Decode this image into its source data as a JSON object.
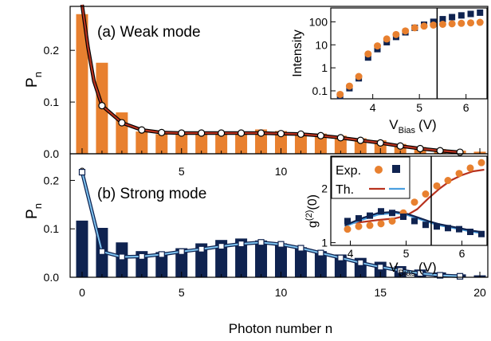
{
  "colors": {
    "orange": "#e8802f",
    "navy": "#0f2350",
    "dark_red": "#b8321e",
    "light_blue": "#4a9fe0",
    "black": "#000000"
  },
  "chart_data": [
    {
      "id": "weak",
      "type": "bar",
      "panel_label": "(a) Weak mode",
      "ylabel": "P",
      "ylabel_sub": "n",
      "xlim": [
        -0.6,
        20.4
      ],
      "ylim": [
        0,
        0.285
      ],
      "yticks": [
        0.0,
        0.1,
        0.2
      ],
      "ytick_labels": [
        "0.0",
        "0.1",
        "0.2"
      ],
      "x": [
        0,
        1,
        2,
        3,
        4,
        5,
        6,
        7,
        8,
        9,
        10,
        11,
        12,
        13,
        14,
        15,
        16,
        17,
        18,
        19,
        20
      ],
      "values": [
        0.27,
        0.176,
        0.08,
        0.043,
        0.038,
        0.038,
        0.04,
        0.04,
        0.043,
        0.047,
        0.044,
        0.04,
        0.039,
        0.035,
        0.03,
        0.026,
        0.019,
        0.013,
        0.009,
        0.006,
        0.004
      ],
      "theory": [
        0.33,
        0.093,
        0.06,
        0.046,
        0.041,
        0.04,
        0.04,
        0.04,
        0.04,
        0.04,
        0.039,
        0.038,
        0.035,
        0.031,
        0.026,
        0.021,
        0.015,
        0.01,
        0.006,
        0.003,
        0.001
      ],
      "theory_line_pre": [
        [
          0.0,
          0.3
        ],
        [
          0.3,
          0.205
        ],
        [
          0.6,
          0.14
        ]
      ]
    },
    {
      "id": "strong",
      "type": "bar",
      "panel_label": "(b) Strong mode",
      "ylabel": "P",
      "ylabel_sub": "n",
      "xlabel": "Photon number n",
      "xlim": [
        -0.6,
        20.4
      ],
      "ylim": [
        0,
        0.255
      ],
      "yticks": [
        0.0,
        0.1,
        0.2
      ],
      "ytick_labels": [
        "0.0",
        "0.1",
        "0.2"
      ],
      "xticks": [
        0,
        5,
        10,
        15,
        20
      ],
      "xtick_labels": [
        "0",
        "5",
        "10",
        "15",
        "20"
      ],
      "x": [
        0,
        1,
        2,
        3,
        4,
        5,
        6,
        7,
        8,
        9,
        10,
        11,
        12,
        13,
        14,
        15,
        16,
        17,
        18,
        19,
        20
      ],
      "values": [
        0.117,
        0.102,
        0.072,
        0.054,
        0.052,
        0.06,
        0.07,
        0.077,
        0.08,
        0.076,
        0.07,
        0.062,
        0.054,
        0.047,
        0.04,
        0.032,
        0.023,
        0.016,
        0.01,
        0.006,
        0.004
      ],
      "theory": [
        0.217,
        0.053,
        0.042,
        0.043,
        0.047,
        0.053,
        0.058,
        0.064,
        0.069,
        0.072,
        0.068,
        0.06,
        0.05,
        0.04,
        0.03,
        0.021,
        0.014,
        0.008,
        0.004,
        0.002,
        0.001
      ]
    },
    {
      "id": "inset-intensity",
      "type": "scatter",
      "xlabel": "V",
      "xlabel_sub": "Bias",
      "xlabel_unit": "(V)",
      "ylabel": "Intensity",
      "yscale": "log",
      "xlim": [
        3.1,
        6.45
      ],
      "ylim": [
        0.045,
        400
      ],
      "xticks": [
        4,
        5,
        6
      ],
      "xtick_labels": [
        "4",
        "5",
        "6"
      ],
      "yticks": [
        0.1,
        1,
        10,
        100
      ],
      "ytick_labels": [
        "0.1",
        "1",
        "10",
        "100"
      ],
      "vline": 5.38,
      "series": [
        {
          "marker": "square",
          "color": "#0f2350",
          "x": [
            3.3,
            3.5,
            3.7,
            3.9,
            4.1,
            4.3,
            4.5,
            4.7,
            4.9,
            5.1,
            5.3,
            5.5,
            5.7,
            5.9,
            6.1,
            6.3
          ],
          "y": [
            0.06,
            0.13,
            0.35,
            2.8,
            6.5,
            13,
            22,
            35,
            55,
            75,
            100,
            130,
            160,
            190,
            220,
            250
          ]
        },
        {
          "marker": "circle",
          "color": "#e8802f",
          "x": [
            3.3,
            3.5,
            3.7,
            3.9,
            4.1,
            4.3,
            4.5,
            4.7,
            4.9,
            5.1,
            5.3,
            5.5,
            5.7,
            5.9,
            6.1,
            6.3
          ],
          "y": [
            0.07,
            0.16,
            0.42,
            4,
            9,
            18,
            28,
            40,
            55,
            65,
            72,
            78,
            82,
            86,
            90,
            95
          ]
        }
      ]
    },
    {
      "id": "inset-g2",
      "type": "scatter",
      "xlabel": "V",
      "xlabel_sub": "Bias",
      "xlabel_unit": "(V)",
      "ylabel": "g",
      "ylabel_sup": "(2)",
      "ylabel_tail": "(0)",
      "xlim": [
        3.65,
        6.45
      ],
      "ylim": [
        0.95,
        2.6
      ],
      "xticks": [
        4,
        5,
        6
      ],
      "xtick_labels": [
        "4",
        "5",
        "6"
      ],
      "yticks": [
        1,
        2
      ],
      "ytick_labels": [
        "1",
        "2"
      ],
      "vline": 5.45,
      "legend": {
        "exp_label": "Exp.",
        "th_label": "Th."
      },
      "series": [
        {
          "marker": "circle",
          "color": "#e8802f",
          "x": [
            3.95,
            4.15,
            4.35,
            4.55,
            4.75,
            4.95,
            5.15,
            5.35,
            5.55,
            5.75,
            5.95,
            6.15,
            6.35
          ],
          "y": [
            1.25,
            1.3,
            1.32,
            1.35,
            1.4,
            1.55,
            1.75,
            1.9,
            2.05,
            2.15,
            2.28,
            2.38,
            2.48
          ]
        },
        {
          "marker": "square",
          "color": "#0f2350",
          "x": [
            3.95,
            4.15,
            4.35,
            4.55,
            4.75,
            4.95,
            5.15,
            5.35,
            5.55,
            5.75,
            5.95,
            6.15,
            6.35
          ],
          "y": [
            1.4,
            1.45,
            1.5,
            1.58,
            1.55,
            1.48,
            1.4,
            1.33,
            1.3,
            1.27,
            1.25,
            1.2,
            1.16
          ]
        },
        {
          "marker": "line",
          "color": "#b8321e",
          "x": [
            3.9,
            4.2,
            4.5,
            4.8,
            5.0,
            5.2,
            5.4,
            5.6,
            5.8,
            6.0,
            6.2,
            6.4
          ],
          "y": [
            1.35,
            1.38,
            1.42,
            1.45,
            1.5,
            1.62,
            1.82,
            2.0,
            2.15,
            2.25,
            2.32,
            2.35
          ]
        },
        {
          "marker": "line",
          "color": "#4a9fe0",
          "x": [
            3.9,
            4.2,
            4.5,
            4.8,
            5.0,
            5.2,
            5.4,
            5.6,
            5.8,
            6.0,
            6.2,
            6.4
          ],
          "y": [
            1.3,
            1.42,
            1.52,
            1.55,
            1.52,
            1.45,
            1.38,
            1.32,
            1.28,
            1.24,
            1.2,
            1.17
          ]
        },
        {
          "marker": "line",
          "color": "#0f2350",
          "x": [
            3.9,
            4.2,
            4.5,
            4.8,
            5.0,
            5.2,
            5.4,
            5.6,
            5.8,
            6.0,
            6.2,
            6.4
          ],
          "y": [
            1.32,
            1.45,
            1.55,
            1.57,
            1.54,
            1.47,
            1.4,
            1.34,
            1.3,
            1.26,
            1.22,
            1.19
          ]
        }
      ]
    }
  ]
}
